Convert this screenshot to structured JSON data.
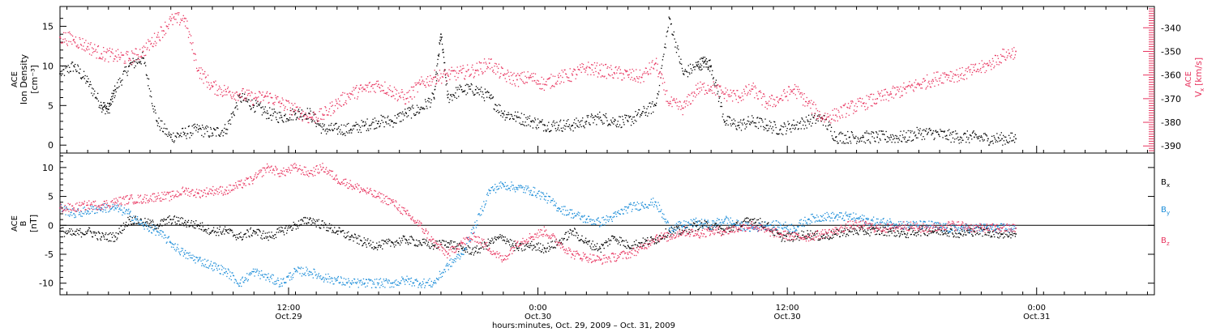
{
  "colors": {
    "black": "#000000",
    "blue": "#1a8cd8",
    "red": "#e8345f"
  },
  "chart_data": [
    {
      "type": "scatter",
      "panel": "top",
      "ylabel_left": [
        "ACE",
        "Ion Density",
        "[cm⁻³]"
      ],
      "ylabel_right": [
        "ACE",
        "V",
        "x",
        "[km/s]"
      ],
      "ylim_left": [
        -1,
        17.5
      ],
      "ylim_right": [
        -393,
        -331
      ],
      "yticks_left": [
        0,
        5,
        10,
        15
      ],
      "yticks_right": [
        -340,
        -350,
        -360,
        -370,
        -380,
        -390
      ],
      "series": [
        {
          "axis": "left",
          "color": "#000000",
          "x": [
            0,
            1,
            2,
            3,
            3.5,
            4,
            5,
            6,
            7,
            8,
            9,
            10,
            11,
            12,
            13,
            14,
            15,
            16,
            17,
            18,
            19,
            20,
            21,
            22,
            23,
            24,
            25,
            26,
            27,
            27.5,
            28,
            29,
            30,
            31,
            32,
            33,
            34,
            35,
            36,
            37,
            38,
            39,
            40,
            41,
            42,
            43,
            44,
            45,
            46,
            46.5,
            47,
            48,
            49,
            50,
            51,
            52,
            53,
            54,
            55,
            56,
            57,
            58,
            59,
            60,
            61,
            62,
            63,
            64,
            65,
            66,
            67,
            68,
            69
          ],
          "y": [
            9,
            10,
            8,
            5,
            4.5,
            7,
            10,
            11,
            3,
            1,
            1.5,
            2,
            1.5,
            2,
            6,
            5,
            4,
            3.5,
            4,
            4,
            2,
            2,
            2,
            2.5,
            3,
            3,
            4,
            4.5,
            6,
            14,
            6,
            7,
            7,
            6,
            4,
            3.5,
            3,
            2.5,
            2.5,
            2.5,
            3,
            3.5,
            3,
            3,
            4,
            5,
            16,
            9,
            10,
            10.5,
            10,
            3,
            2.5,
            3,
            2.5,
            2,
            2.5,
            3,
            3.5,
            1,
            1,
            1,
            1,
            1,
            1,
            1.5,
            1.5,
            1.2,
            1,
            1,
            0.8,
            0.8,
            0.8
          ]
        },
        {
          "axis": "right",
          "color": "#e8345f",
          "x": [
            0,
            1,
            2,
            3,
            4,
            5,
            6,
            7,
            8,
            9,
            10,
            11,
            12,
            13,
            14,
            15,
            16,
            17,
            18,
            19,
            20,
            21,
            22,
            23,
            24,
            25,
            26,
            27,
            28,
            29,
            30,
            31,
            32,
            33,
            34,
            35,
            36,
            37,
            38,
            39,
            40,
            41,
            42,
            43,
            44,
            45,
            46,
            47,
            48,
            49,
            50,
            51,
            52,
            53,
            54,
            55,
            56,
            57,
            58,
            59,
            60,
            61,
            62,
            63,
            64,
            65,
            66,
            67,
            68,
            69
          ],
          "y": [
            -344,
            -345,
            -348,
            -351,
            -352,
            -353,
            -350,
            -344,
            -337,
            -336,
            -358,
            -365,
            -367,
            -368,
            -370,
            -369,
            -372,
            -375,
            -378,
            -377,
            -372,
            -368,
            -366,
            -364,
            -367,
            -370,
            -364,
            -361,
            -360,
            -359,
            -358,
            -355,
            -360,
            -362,
            -361,
            -364,
            -361,
            -360,
            -357,
            -358,
            -359,
            -360,
            -361,
            -355,
            -372,
            -374,
            -366,
            -365,
            -368,
            -369,
            -366,
            -372,
            -370,
            -366,
            -372,
            -378,
            -377,
            -374,
            -372,
            -370,
            -368,
            -366,
            -364,
            -362,
            -360,
            -360,
            -358,
            -356,
            -352,
            -350
          ]
        }
      ]
    },
    {
      "type": "scatter",
      "panel": "bottom",
      "ylabel": [
        "ACE",
        "B",
        "[nT]"
      ],
      "ylim": [
        -12,
        12.5
      ],
      "yticks": [
        10,
        5,
        0,
        -5,
        -10
      ],
      "legend": [
        "Bx",
        "By",
        "Bz"
      ],
      "series": [
        {
          "name": "Bx",
          "color": "#000000",
          "x": [
            0,
            1,
            2,
            3,
            4,
            5,
            6,
            7,
            8,
            9,
            10,
            11,
            12,
            13,
            14,
            15,
            16,
            17,
            18,
            19,
            20,
            21,
            22,
            23,
            24,
            25,
            26,
            27,
            28,
            29,
            30,
            31,
            32,
            33,
            34,
            35,
            36,
            37,
            38,
            39,
            40,
            41,
            42,
            43,
            44,
            45,
            46,
            47,
            48,
            49,
            50,
            51,
            52,
            53,
            54,
            55,
            56,
            57,
            58,
            59,
            60,
            61,
            62,
            63,
            64,
            65,
            66,
            67,
            68,
            69
          ],
          "y": [
            -1,
            -1.5,
            -1,
            -2,
            -2,
            1,
            0.5,
            0,
            1,
            0.5,
            0,
            -1,
            -1,
            -2,
            -1,
            -2,
            -1,
            0,
            1,
            0,
            -1,
            -2,
            -3,
            -3.5,
            -3,
            -2.5,
            -3,
            -3.5,
            -3,
            -4,
            -4.5,
            -3,
            -2,
            -4,
            -3.5,
            -4,
            -3,
            -1,
            -3,
            -4,
            -2,
            -3.5,
            -3,
            -2.5,
            -1,
            -1,
            0,
            0,
            -1,
            0,
            1,
            0,
            -2,
            -2,
            -1.5,
            -2,
            -1.5,
            -1,
            -1,
            -1,
            -1,
            -1.5,
            -1,
            -1,
            -1,
            -1.5,
            -1,
            -1.2,
            -1.5,
            -1.5
          ]
        },
        {
          "name": "By",
          "color": "#1a8cd8",
          "x": [
            0,
            1,
            2,
            3,
            4,
            5,
            6,
            7,
            8,
            9,
            10,
            11,
            12,
            13,
            14,
            15,
            16,
            17,
            18,
            19,
            20,
            21,
            22,
            23,
            24,
            25,
            26,
            27,
            28,
            29,
            30,
            31,
            32,
            33,
            34,
            35,
            36,
            37,
            38,
            39,
            40,
            41,
            42,
            43,
            44,
            45,
            46,
            47,
            48,
            49,
            50,
            51,
            52,
            53,
            54,
            55,
            56,
            57,
            58,
            59,
            60,
            61,
            62,
            63,
            64,
            65,
            66,
            67,
            68,
            69
          ],
          "y": [
            3,
            2,
            2.5,
            3,
            3,
            2,
            0,
            -1,
            -3,
            -5,
            -6,
            -7,
            -8,
            -10,
            -8,
            -9,
            -10,
            -8,
            -8,
            -9,
            -9.5,
            -10,
            -10,
            -10,
            -10,
            -9.5,
            -10,
            -10,
            -7,
            -5,
            0,
            6,
            7,
            6.5,
            6,
            5,
            3,
            2,
            1,
            0.5,
            1.5,
            3,
            3.5,
            4,
            -0.5,
            0,
            0.5,
            0,
            1,
            0,
            -0.5,
            0,
            0,
            -0.5,
            1,
            1.5,
            1.5,
            1.5,
            1,
            0.5,
            0.5,
            0,
            0,
            0,
            -0.5,
            -0.5,
            -0.5,
            -0.5,
            -0.5,
            -0.5
          ]
        },
        {
          "name": "Bz",
          "color": "#e8345f",
          "x": [
            0,
            1,
            2,
            3,
            4,
            5,
            6,
            7,
            8,
            9,
            10,
            11,
            12,
            13,
            14,
            15,
            16,
            17,
            18,
            19,
            20,
            21,
            22,
            23,
            24,
            25,
            26,
            27,
            28,
            29,
            30,
            31,
            32,
            33,
            34,
            35,
            36,
            37,
            38,
            39,
            40,
            41,
            42,
            43,
            44,
            45,
            46,
            47,
            48,
            49,
            50,
            51,
            52,
            53,
            54,
            55,
            56,
            57,
            58,
            59,
            60,
            61,
            62,
            63,
            64,
            65,
            66,
            67,
            68,
            69
          ],
          "y": [
            3,
            3,
            3.5,
            3.5,
            4,
            4.5,
            4.5,
            5,
            5,
            6,
            5.5,
            6,
            6,
            7,
            8,
            10,
            9,
            10,
            9,
            10,
            8,
            7,
            6,
            5,
            4,
            2,
            0,
            -3,
            -5,
            -3,
            -2,
            -4,
            -6,
            -3,
            -2,
            -1,
            -3,
            -5,
            -5.5,
            -6,
            -5.5,
            -5,
            -4,
            -2,
            -2,
            -1,
            -1.5,
            -1,
            -1,
            -0.5,
            0,
            -1,
            -1.5,
            -2,
            -2,
            -1.5,
            -1,
            0,
            0,
            -0.5,
            -0.5,
            0,
            -0.5,
            -0.5,
            0,
            0,
            -0.5,
            -0.5,
            -0.5,
            -0.5
          ]
        }
      ]
    }
  ],
  "xaxis": {
    "title": "hours:minutes, Oct. 29, 2009 – Oct. 31, 2009",
    "xlim": [
      0,
      79
    ],
    "ticks": [
      {
        "x": 16.5,
        "line1": "12:00",
        "line2": "Oct.29"
      },
      {
        "x": 34.5,
        "line1": "0:00",
        "line2": "Oct.30"
      },
      {
        "x": 52.5,
        "line1": "12:00",
        "line2": "Oct.30"
      },
      {
        "x": 70.5,
        "line1": "0:00",
        "line2": "Oct.31"
      }
    ],
    "minor_step": 1.5
  },
  "legend_labels": {
    "bx_main": "B",
    "bx_sub": "x",
    "by_main": "B",
    "by_sub": "y",
    "bz_main": "B",
    "bz_sub": "z"
  }
}
